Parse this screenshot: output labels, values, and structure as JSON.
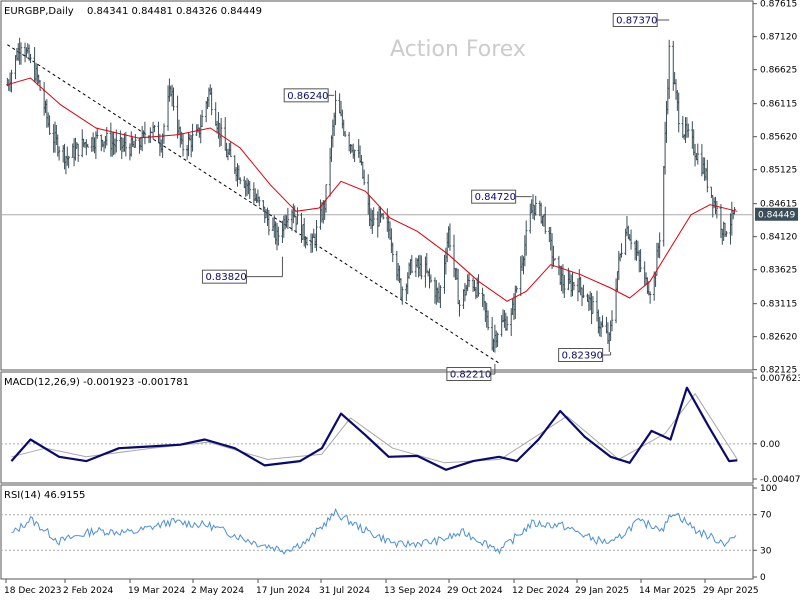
{
  "header": {
    "symbol": "EURGBP,Daily",
    "ohlc": "0.84341 0.84481 0.84326 0.84449"
  },
  "watermark": "Action Forex",
  "colors": {
    "price": "#3a4e58",
    "ma": "#e0000b",
    "trendline": "#000000",
    "macd": "#0a0a6e",
    "signal": "#a8a8a8",
    "rsi": "#4a90d9",
    "grid": "#aaaaaa",
    "frame": "#555555",
    "text": "#000000",
    "watermark": "#cccccc"
  },
  "chart_data": [
    {
      "type": "line",
      "panel": "price",
      "ylim": [
        0.8215,
        0.8761
      ],
      "y_ticks": [
        "0.87615",
        "0.87120",
        "0.86625",
        "0.86115",
        "0.85620",
        "0.85125",
        "0.84615",
        "0.84120",
        "0.83625",
        "0.83115",
        "0.82620",
        "0.82125"
      ],
      "last_price_label": "0.84449",
      "x_tick_labels": [
        "18 Dec 2023",
        "2 Feb 2024",
        "19 Mar 2024",
        "2 May 2024",
        "17 Jun 2024",
        "31 Jul 2024",
        "13 Sep 2024",
        "29 Oct 2024",
        "12 Dec 2024",
        "29 Jan 2025",
        "14 Mar 2025",
        "29 Apr 2025"
      ],
      "annotations": [
        {
          "label": "0.86240",
          "date": "2024-08-08",
          "value": 0.8624
        },
        {
          "label": "0.83820",
          "date": "2024-07-01",
          "value": 0.8382
        },
        {
          "label": "0.84720",
          "date": "2024-12-31",
          "value": 0.8472
        },
        {
          "label": "0.82210",
          "date": "2024-12-04",
          "value": 0.8221
        },
        {
          "label": "0.82390",
          "date": "2025-02-27",
          "value": 0.8239
        },
        {
          "label": "0.87370",
          "date": "2025-04-11",
          "value": 0.8737
        }
      ],
      "price_path": [
        [
          "2023-12-12",
          0.864
        ],
        [
          "2023-12-22",
          0.8705
        ],
        [
          "2024-01-03",
          0.865
        ],
        [
          "2024-01-13",
          0.8565
        ],
        [
          "2024-01-25",
          0.853
        ],
        [
          "2024-02-08",
          0.8555
        ],
        [
          "2024-02-20",
          0.856
        ],
        [
          "2024-03-02",
          0.8548
        ],
        [
          "2024-03-16",
          0.8545
        ],
        [
          "2024-03-26",
          0.8575
        ],
        [
          "2024-04-03",
          0.8555
        ],
        [
          "2024-04-10",
          0.8635
        ],
        [
          "2024-04-18",
          0.8545
        ],
        [
          "2024-04-30",
          0.8565
        ],
        [
          "2024-05-08",
          0.863
        ],
        [
          "2024-05-20",
          0.854
        ],
        [
          "2024-06-05",
          0.849
        ],
        [
          "2024-06-17",
          0.845
        ],
        [
          "2024-06-27",
          0.841
        ],
        [
          "2024-07-07",
          0.846
        ],
        [
          "2024-07-15",
          0.842
        ],
        [
          "2024-07-23",
          0.84
        ],
        [
          "2024-08-01",
          0.846
        ],
        [
          "2024-08-09",
          0.861
        ],
        [
          "2024-08-17",
          0.8565
        ],
        [
          "2024-08-27",
          0.8525
        ],
        [
          "2024-09-04",
          0.843
        ],
        [
          "2024-09-10",
          0.844
        ],
        [
          "2024-09-18",
          0.842
        ],
        [
          "2024-09-26",
          0.833
        ],
        [
          "2024-10-04",
          0.837
        ],
        [
          "2024-10-14",
          0.836
        ],
        [
          "2024-10-24",
          0.832
        ],
        [
          "2024-10-31",
          0.842
        ],
        [
          "2024-11-08",
          0.831
        ],
        [
          "2024-11-16",
          0.835
        ],
        [
          "2024-11-24",
          0.832
        ],
        [
          "2024-12-02",
          0.8255
        ],
        [
          "2024-12-08",
          0.828
        ],
        [
          "2024-12-16",
          0.829
        ],
        [
          "2024-12-24",
          0.838
        ],
        [
          "2025-01-01",
          0.846
        ],
        [
          "2025-01-09",
          0.844
        ],
        [
          "2025-01-17",
          0.837
        ],
        [
          "2025-01-25",
          0.8335
        ],
        [
          "2025-02-02",
          0.8345
        ],
        [
          "2025-02-10",
          0.832
        ],
        [
          "2025-02-18",
          0.8285
        ],
        [
          "2025-02-26",
          0.8255
        ],
        [
          "2025-03-04",
          0.836
        ],
        [
          "2025-03-10",
          0.843
        ],
        [
          "2025-03-16",
          0.84
        ],
        [
          "2025-03-24",
          0.8345
        ],
        [
          "2025-03-30",
          0.833
        ],
        [
          "2025-04-05",
          0.843
        ],
        [
          "2025-04-11",
          0.869
        ],
        [
          "2025-04-19",
          0.858
        ],
        [
          "2025-04-27",
          0.8555
        ],
        [
          "2025-05-05",
          0.852
        ],
        [
          "2025-05-13",
          0.847
        ],
        [
          "2025-05-21",
          0.842
        ],
        [
          "2025-05-29",
          0.8445
        ]
      ],
      "moving_average": [
        [
          "2023-12-12",
          0.864
        ],
        [
          "2023-12-29",
          0.865
        ],
        [
          "2024-01-20",
          0.861
        ],
        [
          "2024-02-15",
          0.8575
        ],
        [
          "2024-03-17",
          0.856
        ],
        [
          "2024-04-15",
          0.8565
        ],
        [
          "2024-05-09",
          0.8575
        ],
        [
          "2024-05-31",
          0.8545
        ],
        [
          "2024-06-22",
          0.849
        ],
        [
          "2024-07-11",
          0.845
        ],
        [
          "2024-07-28",
          0.8455
        ],
        [
          "2024-08-13",
          0.8495
        ],
        [
          "2024-08-31",
          0.848
        ],
        [
          "2024-09-18",
          0.844
        ],
        [
          "2024-10-08",
          0.842
        ],
        [
          "2024-10-31",
          0.8385
        ],
        [
          "2024-11-22",
          0.8345
        ],
        [
          "2024-12-13",
          0.8315
        ],
        [
          "2024-12-27",
          0.833
        ],
        [
          "2025-01-14",
          0.837
        ],
        [
          "2025-02-05",
          0.8355
        ],
        [
          "2025-02-27",
          0.8335
        ],
        [
          "2025-03-13",
          0.832
        ],
        [
          "2025-03-28",
          0.8345
        ],
        [
          "2025-04-12",
          0.8395
        ],
        [
          "2025-04-27",
          0.8445
        ],
        [
          "2025-05-11",
          0.846
        ],
        [
          "2025-05-31",
          0.845
        ]
      ],
      "trendline": [
        [
          "2023-12-12",
          0.87
        ],
        [
          "2024-12-08",
          0.8221
        ]
      ]
    },
    {
      "type": "line",
      "panel": "macd",
      "label": "MACD(12,26,9) -0.001923 -0.001781",
      "ylim": [
        -0.00407,
        0.00762
      ],
      "y_ticks": [
        "0.007623",
        "0.00",
        "-0.004073"
      ],
      "zero_line": 0,
      "series": [
        {
          "name": "MACD",
          "points": [
            [
              "2023-12-15",
              -0.002
            ],
            [
              "2023-12-29",
              0.0005
            ],
            [
              "2024-01-19",
              -0.0015
            ],
            [
              "2024-02-08",
              -0.002
            ],
            [
              "2024-03-03",
              -0.0005
            ],
            [
              "2024-03-27",
              -0.0003
            ],
            [
              "2024-04-17",
              -0.0001
            ],
            [
              "2024-05-05",
              0.0005
            ],
            [
              "2024-05-27",
              -0.0005
            ],
            [
              "2024-06-18",
              -0.0025
            ],
            [
              "2024-07-14",
              -0.002
            ],
            [
              "2024-07-30",
              -0.0005
            ],
            [
              "2024-08-13",
              0.0035
            ],
            [
              "2024-08-31",
              0.001
            ],
            [
              "2024-09-17",
              -0.0015
            ],
            [
              "2024-10-08",
              -0.0014
            ],
            [
              "2024-10-29",
              -0.003
            ],
            [
              "2024-11-18",
              -0.002
            ],
            [
              "2024-12-07",
              -0.0015
            ],
            [
              "2024-12-20",
              -0.002
            ],
            [
              "2025-01-05",
              0.0005
            ],
            [
              "2025-01-21",
              0.0038
            ],
            [
              "2025-02-08",
              0.0008
            ],
            [
              "2025-02-27",
              -0.0015
            ],
            [
              "2025-03-13",
              -0.0022
            ],
            [
              "2025-03-29",
              0.0015
            ],
            [
              "2025-04-12",
              0.0005
            ],
            [
              "2025-04-24",
              0.0065
            ],
            [
              "2025-05-10",
              0.002
            ],
            [
              "2025-05-25",
              -0.002
            ],
            [
              "2025-05-31",
              -0.0019
            ]
          ]
        },
        {
          "name": "Signal",
          "points": [
            [
              "2023-12-15",
              -0.0015
            ],
            [
              "2024-01-09",
              -0.0005
            ],
            [
              "2024-02-08",
              -0.0015
            ],
            [
              "2024-03-27",
              -0.0005
            ],
            [
              "2024-05-08",
              0.0002
            ],
            [
              "2024-06-20",
              -0.0018
            ],
            [
              "2024-07-30",
              -0.0012
            ],
            [
              "2024-08-20",
              0.003
            ],
            [
              "2024-09-20",
              -0.0005
            ],
            [
              "2024-10-28",
              -0.0022
            ],
            [
              "2024-12-08",
              -0.0018
            ],
            [
              "2025-01-26",
              0.0032
            ],
            [
              "2025-03-05",
              -0.0018
            ],
            [
              "2025-04-08",
              0.0012
            ],
            [
              "2025-04-30",
              0.0058
            ],
            [
              "2025-05-31",
              -0.0018
            ]
          ]
        }
      ]
    },
    {
      "type": "line",
      "panel": "rsi",
      "label": "RSI(14) 46.9155",
      "ylim": [
        0,
        100
      ],
      "y_ticks": [
        "100",
        "70",
        "30",
        "0"
      ],
      "levels": [
        70,
        30
      ],
      "series": [
        {
          "name": "RSI",
          "points": [
            [
              "2023-12-15",
              48
            ],
            [
              "2023-12-29",
              65
            ],
            [
              "2024-01-19",
              40
            ],
            [
              "2024-02-14",
              52
            ],
            [
              "2024-03-13",
              50
            ],
            [
              "2024-04-10",
              62
            ],
            [
              "2024-05-08",
              58
            ],
            [
              "2024-06-12",
              38
            ],
            [
              "2024-07-03",
              30
            ],
            [
              "2024-07-19",
              40
            ],
            [
              "2024-08-09",
              72
            ],
            [
              "2024-08-31",
              52
            ],
            [
              "2024-09-24",
              36
            ],
            [
              "2024-10-22",
              40
            ],
            [
              "2024-11-11",
              50
            ],
            [
              "2024-12-08",
              30
            ],
            [
              "2024-12-31",
              60
            ],
            [
              "2025-01-22",
              58
            ],
            [
              "2025-02-15",
              42
            ],
            [
              "2025-03-01",
              38
            ],
            [
              "2025-03-18",
              62
            ],
            [
              "2025-04-07",
              55
            ],
            [
              "2025-04-14",
              74
            ],
            [
              "2025-05-01",
              52
            ],
            [
              "2025-05-22",
              38
            ],
            [
              "2025-05-31",
              47
            ]
          ]
        }
      ]
    }
  ]
}
